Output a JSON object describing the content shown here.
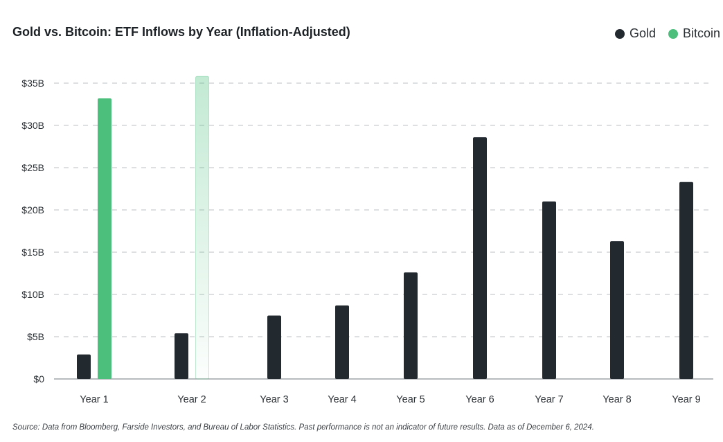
{
  "chart_data": {
    "type": "bar",
    "title": "Gold vs. Bitcoin: ETF Inflows by Year (Inflation-Adjusted)",
    "categories": [
      "Year 1",
      "Year 2",
      "Year 3",
      "Year 4",
      "Year 5",
      "Year 6",
      "Year 7",
      "Year 8",
      "Year 9"
    ],
    "series": [
      {
        "name": "Gold",
        "color": "#22292f",
        "values": [
          2.9,
          5.4,
          7.5,
          8.7,
          12.6,
          28.6,
          21.0,
          16.3,
          23.3
        ]
      },
      {
        "name": "Bitcoin",
        "color": "#4cbf7d",
        "values": [
          33.2,
          35.8,
          null,
          null,
          null,
          null,
          null,
          null,
          null
        ],
        "projected": [
          false,
          true,
          false,
          false,
          false,
          false,
          false,
          false,
          false
        ]
      }
    ],
    "y_ticks": [
      "$0",
      "$5B",
      "$10B",
      "$15B",
      "$20B",
      "$25B",
      "$30B",
      "$35B"
    ],
    "ylim": [
      0,
      35
    ],
    "y_unit": "$B",
    "grid": true,
    "legend_position": "top-right"
  },
  "legend": {
    "gold": "Gold",
    "bitcoin": "Bitcoin"
  },
  "source": "Source: Data from Bloomberg, Farside Investors, and Bureau of Labor Statistics. Past performance is not an indicator of future results. Data as of December 6, 2024."
}
